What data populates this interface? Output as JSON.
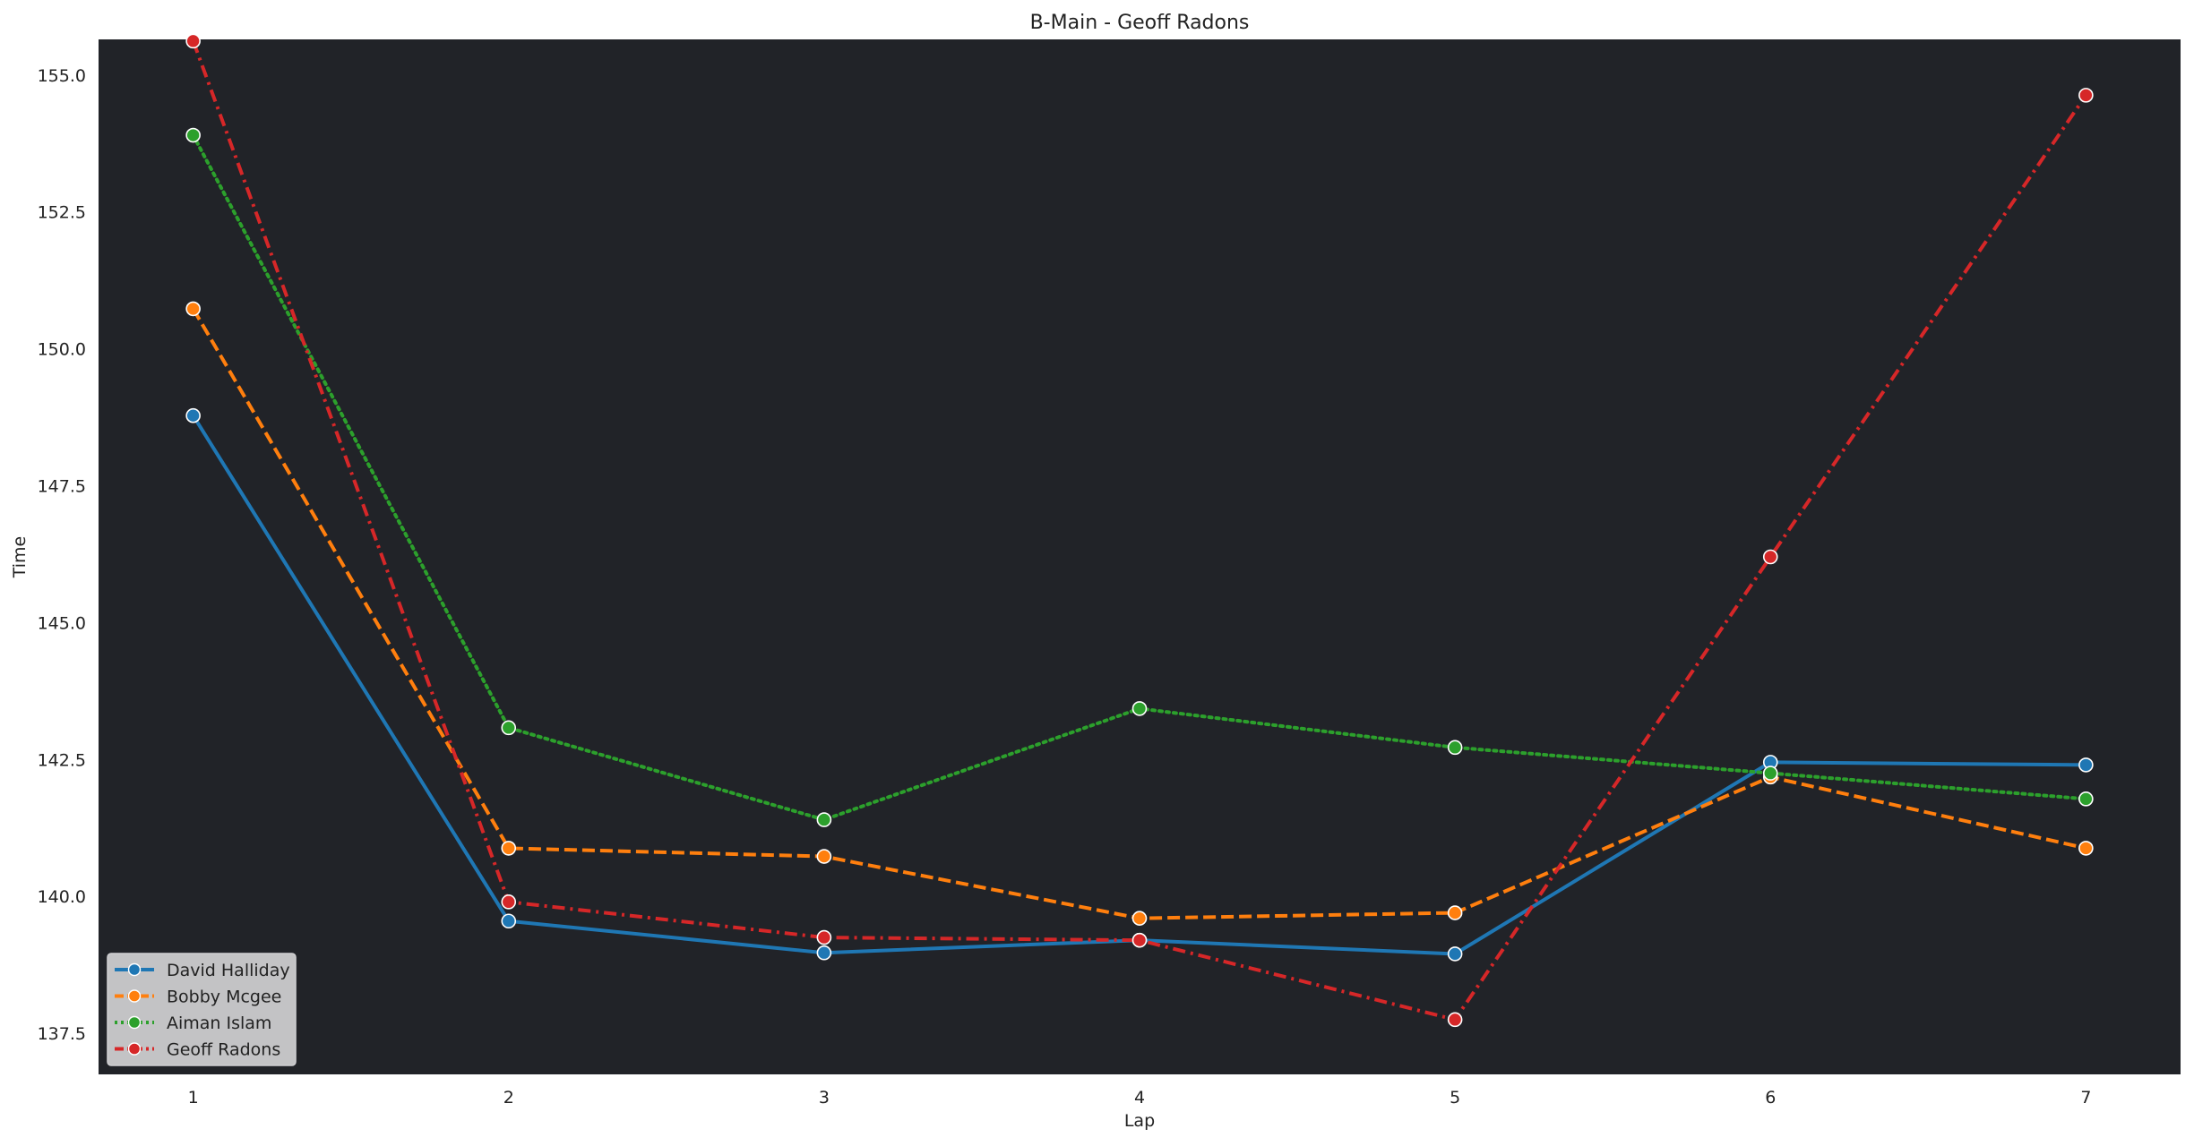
{
  "chart_data": {
    "type": "line",
    "title": "B-Main - Geoff Radons",
    "xlabel": "Lap",
    "ylabel": "Time",
    "x": [
      1,
      2,
      3,
      4,
      5,
      6,
      7
    ],
    "x_ticks": [
      "1",
      "2",
      "3",
      "4",
      "5",
      "6",
      "7"
    ],
    "xlim": [
      0.7,
      7.3
    ],
    "ylim": [
      136.75,
      155.65
    ],
    "y_ticks": [
      137.5,
      140.0,
      142.5,
      145.0,
      147.5,
      150.0,
      152.5,
      155.0
    ],
    "y_tick_labels": [
      "137.5",
      "140.0",
      "142.5",
      "145.0",
      "147.5",
      "150.0",
      "152.5",
      "155.0"
    ],
    "grid": false,
    "background": "#212328",
    "legend_position": "lower-left",
    "series": [
      {
        "name": "David Halliday",
        "color": "#1f77b4",
        "dash": "solid",
        "values": [
          148.78,
          139.55,
          138.97,
          139.2,
          138.95,
          142.45,
          142.4
        ]
      },
      {
        "name": "Bobby Mcgee",
        "color": "#ff7f0e",
        "dash": "dashed",
        "values": [
          150.73,
          140.88,
          140.73,
          139.6,
          139.7,
          142.18,
          140.88
        ]
      },
      {
        "name": "Aiman Islam",
        "color": "#2ca02c",
        "dash": "dotted",
        "values": [
          153.9,
          143.08,
          141.4,
          143.43,
          142.72,
          142.25,
          141.78
        ]
      },
      {
        "name": "Geoff Radons",
        "color": "#d62728",
        "dash": "dashdot",
        "values": [
          155.62,
          139.9,
          139.25,
          139.2,
          137.75,
          146.2,
          154.63
        ]
      }
    ]
  }
}
